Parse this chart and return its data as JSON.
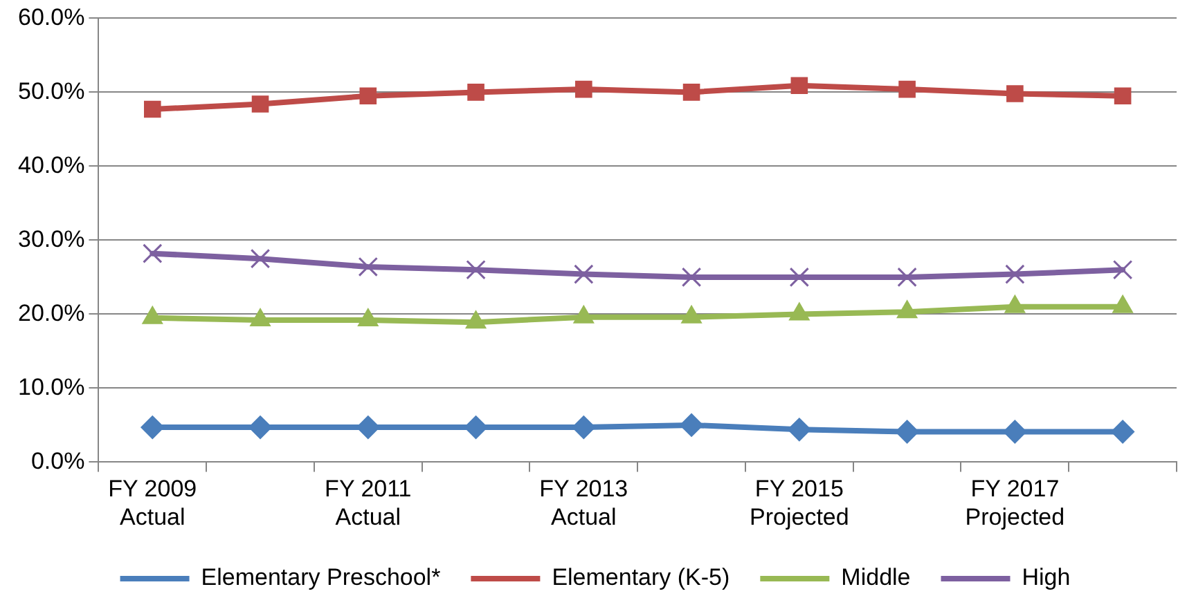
{
  "chart_data": {
    "type": "line",
    "categories": [
      "FY 2009\nActual",
      null,
      "FY 2011\nActual",
      null,
      "FY 2013\nActual",
      null,
      "FY 2015\nProjected",
      null,
      "FY 2017\nProjected",
      null
    ],
    "series": [
      {
        "name": "Elementary Preschool*",
        "color": "#4a7ebb",
        "marker": "diamond",
        "values": [
          4.7,
          4.7,
          4.7,
          4.7,
          4.7,
          5.0,
          4.4,
          4.1,
          4.1,
          4.1
        ]
      },
      {
        "name": "Elementary (K-5)",
        "color": "#be4b48",
        "marker": "square",
        "values": [
          47.7,
          48.4,
          49.5,
          50.0,
          50.4,
          50.0,
          50.9,
          50.4,
          49.8,
          49.5
        ]
      },
      {
        "name": "Middle",
        "color": "#98b954",
        "marker": "triangle",
        "values": [
          19.5,
          19.2,
          19.2,
          18.9,
          19.6,
          19.6,
          20.0,
          20.3,
          21.0,
          21.0
        ]
      },
      {
        "name": "High",
        "color": "#7d60a0",
        "marker": "cross",
        "values": [
          28.2,
          27.5,
          26.4,
          26.0,
          25.4,
          25.0,
          25.0,
          25.0,
          25.4,
          26.0
        ]
      }
    ],
    "ylim": [
      0,
      60
    ],
    "yticks": [
      {
        "value": 0,
        "label": "0.0%"
      },
      {
        "value": 10,
        "label": "10.0%"
      },
      {
        "value": 20,
        "label": "20.0%"
      },
      {
        "value": 30,
        "label": "30.0%"
      },
      {
        "value": 40,
        "label": "40.0%"
      },
      {
        "value": 50,
        "label": "50.0%"
      },
      {
        "value": 60,
        "label": "60.0%"
      }
    ],
    "grid": "y",
    "legend": "bottom",
    "line_style": "solid"
  }
}
